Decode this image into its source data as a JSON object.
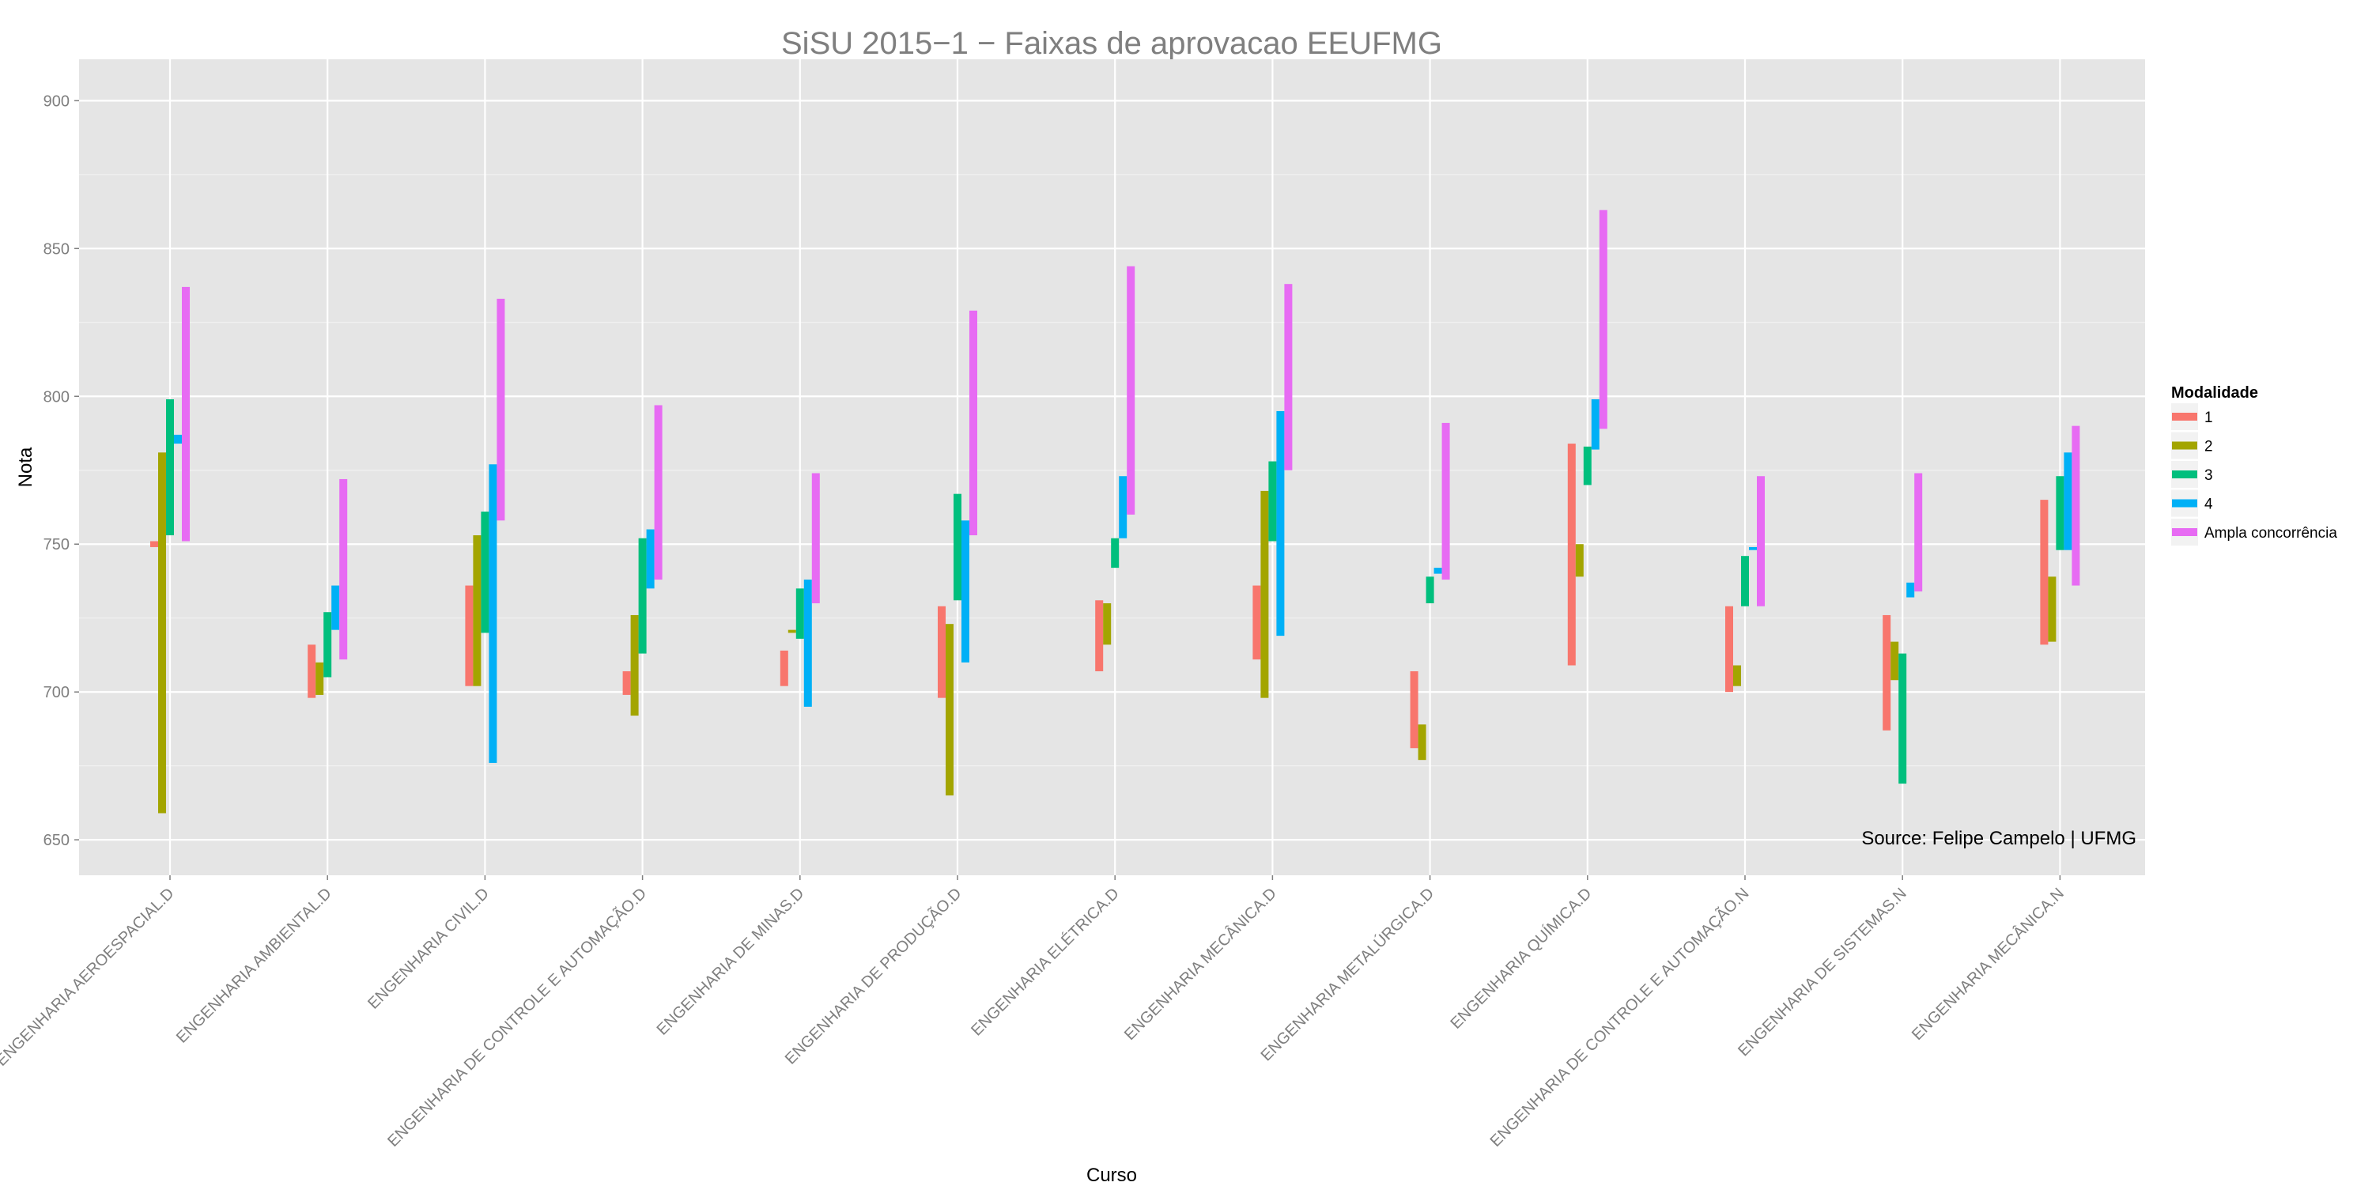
{
  "chart_data": {
    "type": "bar",
    "subtype": "floating-range",
    "title": "SiSU 2015−1 − Faixas de aprovacao EEUFMG",
    "xlabel": "Curso",
    "ylabel": "Nota",
    "ylim": [
      638,
      914
    ],
    "yticks": [
      650,
      700,
      750,
      800,
      850,
      900
    ],
    "ytick_labels": [
      "650",
      "700",
      "750",
      "800",
      "850",
      "900"
    ],
    "grid": true,
    "legend_position": "right",
    "annotation": "Source: Felipe Campelo | UFMG",
    "legend": {
      "title": "Modalidade",
      "entries": [
        "1",
        "2",
        "3",
        "4",
        "Ampla concorrência"
      ]
    },
    "colors": [
      "#F8766D",
      "#A3A500",
      "#00BF7D",
      "#00B0F6",
      "#E76BF3"
    ],
    "categories": [
      "ENGENHARIA AEROESPACIAL.D",
      "ENGENHARIA AMBIENTAL.D",
      "ENGENHARIA CIVIL.D",
      "ENGENHARIA DE CONTROLE E AUTOMAÇÃO.D",
      "ENGENHARIA DE MINAS.D",
      "ENGENHARIA DE PRODUÇÃO.D",
      "ENGENHARIA ELÉTRICA.D",
      "ENGENHARIA MECÂNICA.D",
      "ENGENHARIA METALÚRGICA.D",
      "ENGENHARIA QUÍMICA.D",
      "ENGENHARIA DE CONTROLE E AUTOMAÇÃO.N",
      "ENGENHARIA DE SISTEMAS.N",
      "ENGENHARIA MECÂNICA.N"
    ],
    "series": [
      {
        "name": "1",
        "ranges": [
          [
            749,
            751
          ],
          [
            698,
            716
          ],
          [
            702,
            736
          ],
          [
            699,
            707
          ],
          [
            702,
            714
          ],
          [
            698,
            729
          ],
          [
            707,
            731
          ],
          [
            711,
            736
          ],
          [
            681,
            707
          ],
          [
            709,
            784
          ],
          [
            700,
            729
          ],
          [
            687,
            726
          ],
          [
            716,
            765
          ]
        ]
      },
      {
        "name": "2",
        "ranges": [
          [
            659,
            781
          ],
          [
            699,
            710
          ],
          [
            702,
            753
          ],
          [
            692,
            726
          ],
          [
            720,
            721
          ],
          [
            665,
            723
          ],
          [
            716,
            730
          ],
          [
            698,
            768
          ],
          [
            677,
            689
          ],
          [
            739,
            750
          ],
          [
            702,
            709
          ],
          [
            704,
            717
          ],
          [
            717,
            739
          ]
        ]
      },
      {
        "name": "3",
        "ranges": [
          [
            753,
            799
          ],
          [
            705,
            727
          ],
          [
            720,
            761
          ],
          [
            713,
            752
          ],
          [
            718,
            735
          ],
          [
            731,
            767
          ],
          [
            742,
            752
          ],
          [
            751,
            778
          ],
          [
            730,
            739
          ],
          [
            770,
            783
          ],
          [
            729,
            746
          ],
          [
            669,
            713
          ],
          [
            748,
            773
          ]
        ]
      },
      {
        "name": "4",
        "ranges": [
          [
            784,
            787
          ],
          [
            721,
            736
          ],
          [
            676,
            777
          ],
          [
            735,
            755
          ],
          [
            695,
            738
          ],
          [
            710,
            758
          ],
          [
            752,
            773
          ],
          [
            719,
            795
          ],
          [
            740,
            742
          ],
          [
            782,
            799
          ],
          [
            748,
            749
          ],
          [
            732,
            737
          ],
          [
            748,
            781
          ]
        ]
      },
      {
        "name": "Ampla concorrência",
        "ranges": [
          [
            751,
            837
          ],
          [
            711,
            772
          ],
          [
            758,
            833
          ],
          [
            738,
            797
          ],
          [
            730,
            774
          ],
          [
            753,
            829
          ],
          [
            760,
            844
          ],
          [
            775,
            838
          ],
          [
            738,
            791
          ],
          [
            789,
            863
          ],
          [
            729,
            773
          ],
          [
            734,
            774
          ],
          [
            736,
            790
          ]
        ]
      }
    ]
  }
}
